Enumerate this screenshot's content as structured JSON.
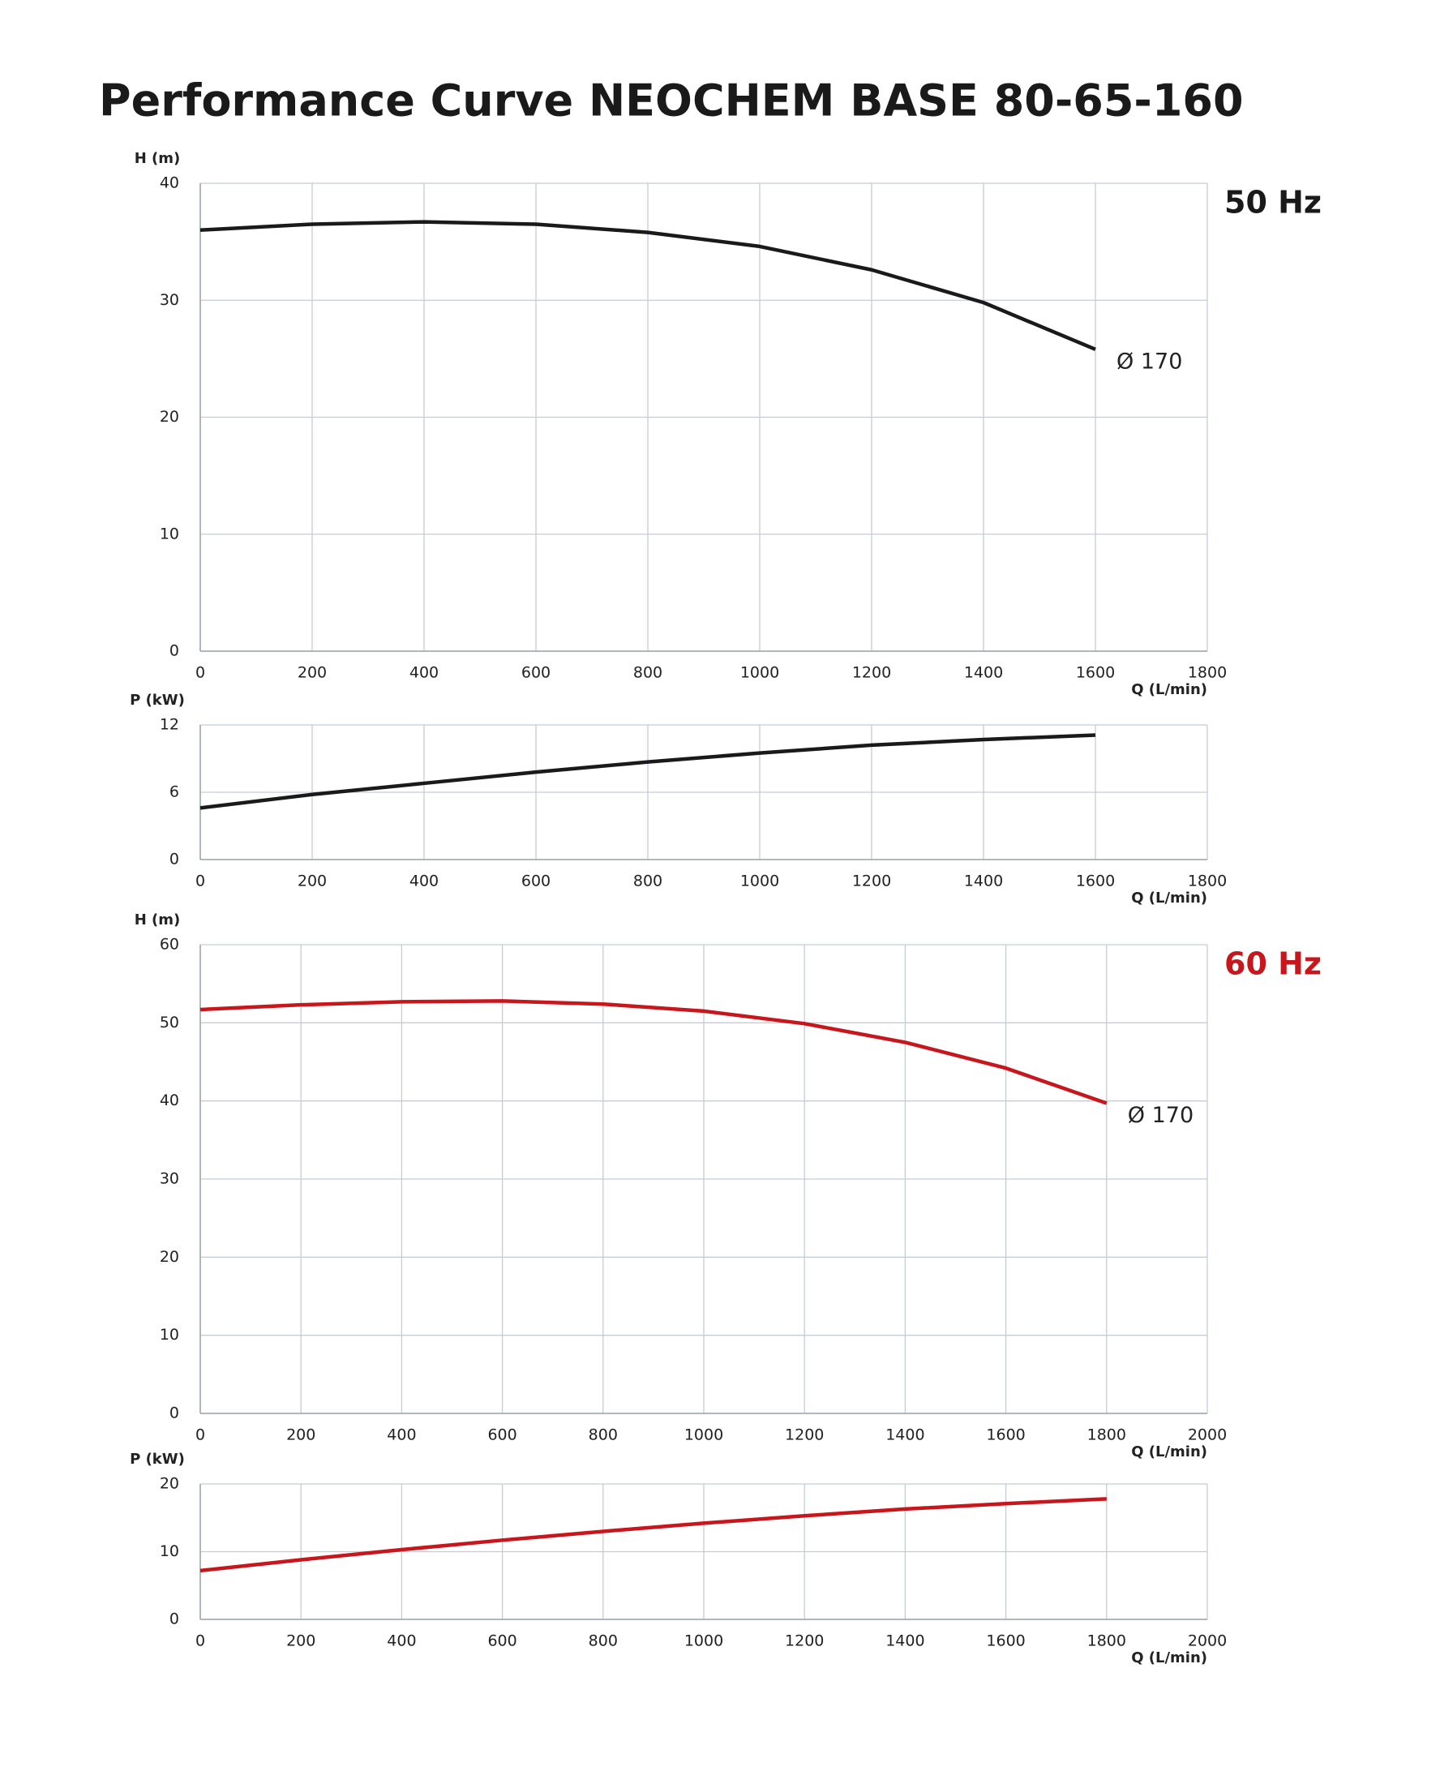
{
  "title": "Performance Curve  NEOCHEM BASE 80-65-160",
  "chart_data": [
    {
      "type": "line",
      "subtitle": "50 Hz",
      "subtitle_color": "#1a1a1a",
      "y_label": "H (m)",
      "x_label": "Q (L/min)",
      "xlim": [
        0,
        1800
      ],
      "xticks": [
        0,
        200,
        400,
        600,
        800,
        1000,
        1200,
        1400,
        1600,
        1800
      ],
      "ylim": [
        0,
        40
      ],
      "yticks": [
        0,
        10,
        20,
        30,
        40
      ],
      "grid": true,
      "x": [
        0,
        200,
        400,
        600,
        800,
        1000,
        1200,
        1400,
        1600
      ],
      "series": [
        {
          "color": "#1a1a1a",
          "values": [
            36,
            36.5,
            36.7,
            36.5,
            35.8,
            34.6,
            32.6,
            29.8,
            25.8
          ]
        }
      ],
      "annotation": "Ø 170"
    },
    {
      "type": "line",
      "y_label": "P (kW)",
      "x_label": "Q (L/min)",
      "xlim": [
        0,
        1800
      ],
      "xticks": [
        0,
        200,
        400,
        600,
        800,
        1000,
        1200,
        1400,
        1600,
        1800
      ],
      "ylim": [
        0,
        12
      ],
      "yticks": [
        0,
        6,
        12
      ],
      "grid": true,
      "x": [
        0,
        200,
        400,
        600,
        800,
        1000,
        1200,
        1400,
        1600
      ],
      "series": [
        {
          "color": "#1a1a1a",
          "values": [
            4.6,
            5.8,
            6.8,
            7.8,
            8.7,
            9.5,
            10.2,
            10.7,
            11.1
          ]
        }
      ]
    },
    {
      "type": "line",
      "subtitle": "60 Hz",
      "subtitle_color": "#c8161d",
      "y_label": "H (m)",
      "x_label": "Q (L/min)",
      "xlim": [
        0,
        2000
      ],
      "xticks": [
        0,
        200,
        400,
        600,
        800,
        1000,
        1200,
        1400,
        1600,
        1800,
        2000
      ],
      "ylim": [
        0,
        60
      ],
      "yticks": [
        0,
        10,
        20,
        30,
        40,
        50,
        60
      ],
      "grid": true,
      "x": [
        0,
        200,
        400,
        600,
        800,
        1000,
        1200,
        1400,
        1600,
        1800
      ],
      "series": [
        {
          "color": "#c8161d",
          "values": [
            51.7,
            52.3,
            52.7,
            52.8,
            52.4,
            51.5,
            49.9,
            47.5,
            44.2,
            39.7
          ]
        }
      ],
      "annotation": "Ø 170"
    },
    {
      "type": "line",
      "y_label": "P (kW)",
      "x_label": "Q (L/min)",
      "xlim": [
        0,
        2000
      ],
      "xticks": [
        0,
        200,
        400,
        600,
        800,
        1000,
        1200,
        1400,
        1600,
        1800,
        2000
      ],
      "ylim": [
        0,
        20
      ],
      "yticks": [
        0,
        10,
        20
      ],
      "grid": true,
      "x": [
        0,
        200,
        400,
        600,
        800,
        1000,
        1200,
        1400,
        1600,
        1800
      ],
      "series": [
        {
          "color": "#c8161d",
          "values": [
            7.2,
            8.8,
            10.3,
            11.7,
            13,
            14.2,
            15.3,
            16.3,
            17.1,
            17.8
          ]
        }
      ]
    }
  ]
}
